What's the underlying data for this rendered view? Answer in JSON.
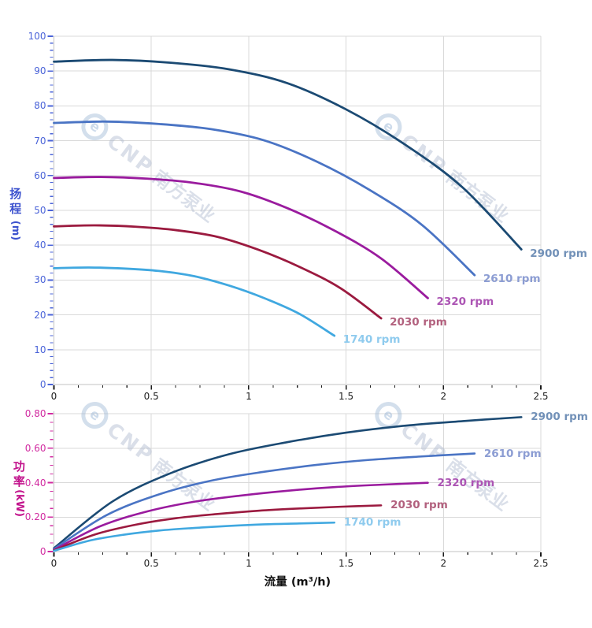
{
  "watermark": {
    "logo_letter": "e",
    "brand": "CNP",
    "cn": "南方泵业"
  },
  "colors": {
    "head_axis_text": "#4A63D8",
    "head_axis_title": "#3D53CE",
    "power_axis_text": "#D12AA0",
    "power_axis_title": "#C2138C",
    "x_axis_text": "#1C1C1C",
    "grid": "#D9D9D9",
    "plot_border": "#C3C3C3",
    "series_colors": [
      "#1B4A73",
      "#4A74C4",
      "#9A1B9E",
      "#9B1A3F",
      "#40A8E0"
    ]
  },
  "chart_data": [
    {
      "type": "line",
      "title": "",
      "xlabel": "",
      "ylabel": "扬程",
      "ylabel_unit": "(m)",
      "xlim": [
        0,
        2.5
      ],
      "ylim": [
        0,
        100
      ],
      "grid": true,
      "legend_position": "curve-ends",
      "x_ticks": {
        "values": [
          0,
          0.5,
          1,
          1.5,
          2,
          2.5
        ],
        "labels": [
          "0",
          "0.5",
          "1",
          "1.5",
          "2",
          "2.5"
        ],
        "minor_step": 0.125
      },
      "y_ticks": {
        "values": [
          0,
          10,
          20,
          30,
          40,
          50,
          60,
          70,
          80,
          90,
          100
        ],
        "labels": [
          "0",
          "10",
          "20",
          "30",
          "40",
          "50",
          "60",
          "70",
          "80",
          "90",
          "100"
        ],
        "minor_step": 2
      },
      "series": [
        {
          "name": "2900 rpm",
          "color": "#1B4A73",
          "label_color": "#7291B8",
          "x": [
            0,
            0.3,
            0.6,
            0.9,
            1.2,
            1.5,
            1.8,
            2.1,
            2.4
          ],
          "y": [
            92.7,
            93.2,
            92.4,
            90.5,
            86.5,
            79.0,
            69.0,
            56.5,
            38.8
          ]
        },
        {
          "name": "2610 rpm",
          "color": "#4A74C4",
          "label_color": "#8C9DD3",
          "x": [
            0,
            0.27,
            0.54,
            0.81,
            1.08,
            1.35,
            1.62,
            1.89,
            2.16
          ],
          "y": [
            75.1,
            75.5,
            74.8,
            73.3,
            70.1,
            64.0,
            55.9,
            45.8,
            31.4
          ]
        },
        {
          "name": "2320 rpm",
          "color": "#9A1B9E",
          "label_color": "#AC55B4",
          "x": [
            0,
            0.24,
            0.48,
            0.72,
            0.96,
            1.2,
            1.44,
            1.68,
            1.92
          ],
          "y": [
            59.3,
            59.6,
            59.1,
            57.9,
            55.4,
            50.6,
            44.2,
            36.2,
            24.8
          ]
        },
        {
          "name": "2030 rpm",
          "color": "#9B1A3F",
          "label_color": "#B2617E",
          "x": [
            0,
            0.21,
            0.42,
            0.63,
            0.84,
            1.05,
            1.26,
            1.47,
            1.68
          ],
          "y": [
            45.4,
            45.7,
            45.3,
            44.3,
            42.4,
            38.7,
            33.8,
            27.7,
            19.0
          ]
        },
        {
          "name": "1740 rpm",
          "color": "#40A8E0",
          "label_color": "#8FCBEE",
          "x": [
            0,
            0.18,
            0.36,
            0.54,
            0.72,
            0.9,
            1.08,
            1.26,
            1.44
          ],
          "y": [
            33.4,
            33.6,
            33.3,
            32.6,
            31.1,
            28.4,
            24.8,
            20.3,
            14.0
          ]
        }
      ]
    },
    {
      "type": "line",
      "title": "",
      "xlabel": "流量 (m³/h)",
      "ylabel": "功率",
      "ylabel_unit": "(kW)",
      "xlim": [
        0,
        2.5
      ],
      "ylim": [
        0,
        0.8
      ],
      "grid": true,
      "legend_position": "curve-ends",
      "x_ticks": {
        "values": [
          0,
          0.5,
          1,
          1.5,
          2,
          2.5
        ],
        "labels": [
          "0",
          "0.5",
          "1",
          "1.5",
          "2",
          "2.5"
        ],
        "minor_step": 0.125
      },
      "y_ticks": {
        "values": [
          0,
          0.2,
          0.4,
          0.6,
          0.8
        ],
        "labels": [
          "0",
          "0.20",
          "0.40",
          "0.60",
          "0.80"
        ],
        "minor_step": 0.05
      },
      "series": [
        {
          "name": "2900 rpm",
          "color": "#1B4A73",
          "label_color": "#7291B8",
          "x": [
            0,
            0.3,
            0.6,
            0.9,
            1.2,
            1.5,
            1.8,
            2.1,
            2.4
          ],
          "y": [
            0.02,
            0.29,
            0.455,
            0.565,
            0.635,
            0.69,
            0.73,
            0.757,
            0.78
          ]
        },
        {
          "name": "2610 rpm",
          "color": "#4A74C4",
          "label_color": "#8C9DD3",
          "x": [
            0,
            0.27,
            0.54,
            0.81,
            1.08,
            1.35,
            1.62,
            1.89,
            2.16
          ],
          "y": [
            0.015,
            0.211,
            0.332,
            0.412,
            0.463,
            0.503,
            0.532,
            0.552,
            0.569
          ]
        },
        {
          "name": "2320 rpm",
          "color": "#9A1B9E",
          "label_color": "#AC55B4",
          "x": [
            0,
            0.24,
            0.48,
            0.72,
            0.96,
            1.2,
            1.44,
            1.68,
            1.92
          ],
          "y": [
            0.01,
            0.148,
            0.233,
            0.289,
            0.325,
            0.353,
            0.374,
            0.388,
            0.399
          ]
        },
        {
          "name": "2030 rpm",
          "color": "#9B1A3F",
          "label_color": "#B2617E",
          "x": [
            0,
            0.21,
            0.42,
            0.63,
            0.84,
            1.05,
            1.26,
            1.47,
            1.68
          ],
          "y": [
            0.007,
            0.099,
            0.156,
            0.194,
            0.218,
            0.237,
            0.25,
            0.26,
            0.268
          ]
        },
        {
          "name": "1740 rpm",
          "color": "#40A8E0",
          "label_color": "#8FCBEE",
          "x": [
            0,
            0.18,
            0.36,
            0.54,
            0.72,
            0.9,
            1.08,
            1.26,
            1.44
          ],
          "y": [
            0.004,
            0.063,
            0.098,
            0.122,
            0.137,
            0.149,
            0.158,
            0.163,
            0.168
          ]
        }
      ]
    }
  ]
}
